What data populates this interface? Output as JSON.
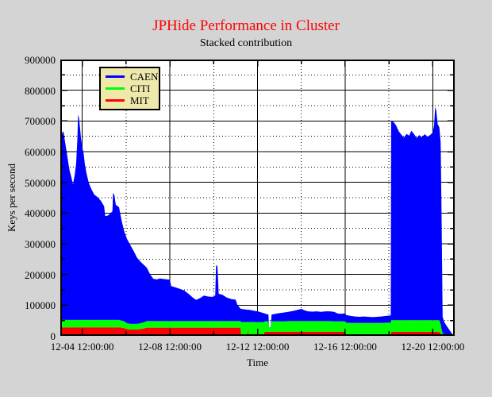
{
  "page": {
    "background": "#d4d4d4"
  },
  "chart_data": {
    "type": "area",
    "stacked": true,
    "title": "JPHide Performance in Cluster",
    "title_color": "#ff0000",
    "subtitle": "Stacked contribution",
    "xlabel": "Time",
    "ylabel": "Keys per second",
    "xlim": [
      0,
      18
    ],
    "ylim": [
      0,
      900000
    ],
    "x_unit": "days; 0 = left edge (12-03 12:00:00), ticks every 4 days",
    "grid": "major solid, minor dotted",
    "x_ticks": [
      {
        "pos": 1,
        "label": "12-04 12:00:00"
      },
      {
        "pos": 5,
        "label": "12-08 12:00:00"
      },
      {
        "pos": 9,
        "label": "12-12 12:00:00"
      },
      {
        "pos": 13,
        "label": "12-16 12:00:00"
      },
      {
        "pos": 17,
        "label": "12-20 12:00:00"
      }
    ],
    "x_minor_ticks": [
      3,
      7,
      11,
      15
    ],
    "y_ticks": [
      {
        "pos": 0,
        "label": "0"
      },
      {
        "pos": 100000,
        "label": "100000"
      },
      {
        "pos": 200000,
        "label": "200000"
      },
      {
        "pos": 300000,
        "label": "300000"
      },
      {
        "pos": 400000,
        "label": "400000"
      },
      {
        "pos": 500000,
        "label": "500000"
      },
      {
        "pos": 600000,
        "label": "600000"
      },
      {
        "pos": 700000,
        "label": "700000"
      },
      {
        "pos": 800000,
        "label": "800000"
      },
      {
        "pos": 900000,
        "label": "900000"
      }
    ],
    "y_minor_ticks": [
      50000,
      150000,
      250000,
      350000,
      450000,
      550000,
      650000,
      750000,
      850000
    ],
    "legend": {
      "position": "top-left",
      "background": "#eee8aa",
      "items": [
        {
          "label": "CAEN",
          "color": "#0000ff"
        },
        {
          "label": "CITI",
          "color": "#00ff00"
        },
        {
          "label": "MIT",
          "color": "#ff0000"
        }
      ]
    },
    "series_order_bottom_to_top": [
      "MIT",
      "CITI",
      "CAEN"
    ],
    "series": [
      {
        "name": "MIT",
        "color": "#ff0000"
      },
      {
        "name": "CITI",
        "color": "#00ff00"
      },
      {
        "name": "CAEN",
        "color": "#0000ff"
      }
    ],
    "samples_format": [
      "x_days",
      "MIT_keys_per_sec",
      "CITI_keys_per_sec",
      "CAEN_keys_per_sec"
    ],
    "samples": [
      [
        0.0,
        28000,
        24000,
        593000
      ],
      [
        0.08,
        28000,
        24000,
        608000
      ],
      [
        0.14,
        28000,
        24000,
        615000
      ],
      [
        0.22,
        28000,
        24000,
        578000
      ],
      [
        0.32,
        28000,
        24000,
        533000
      ],
      [
        0.42,
        28000,
        24000,
        488000
      ],
      [
        0.5,
        28000,
        24000,
        466000
      ],
      [
        0.58,
        28000,
        24000,
        442000
      ],
      [
        0.66,
        28000,
        24000,
        473000
      ],
      [
        0.72,
        28000,
        24000,
        508000
      ],
      [
        0.78,
        28000,
        24000,
        588000
      ],
      [
        0.81,
        28000,
        24000,
        669000
      ],
      [
        0.85,
        28000,
        24000,
        658000
      ],
      [
        0.9,
        28000,
        24000,
        624000
      ],
      [
        0.95,
        28000,
        24000,
        588000
      ],
      [
        1.0,
        28000,
        24000,
        563000
      ],
      [
        1.06,
        28000,
        24000,
        544000
      ],
      [
        1.12,
        28000,
        24000,
        508000
      ],
      [
        1.2,
        28000,
        24000,
        476000
      ],
      [
        1.3,
        28000,
        24000,
        446000
      ],
      [
        1.42,
        28000,
        24000,
        426000
      ],
      [
        1.55,
        28000,
        24000,
        408000
      ],
      [
        1.7,
        28000,
        24000,
        400000
      ],
      [
        1.85,
        28000,
        24000,
        388000
      ],
      [
        2.0,
        28000,
        24000,
        370000
      ],
      [
        2.05,
        28000,
        24000,
        338000
      ],
      [
        2.18,
        28000,
        24000,
        340000
      ],
      [
        2.3,
        28000,
        24000,
        348000
      ],
      [
        2.38,
        28000,
        24000,
        354000
      ],
      [
        2.41,
        28000,
        24000,
        414000
      ],
      [
        2.47,
        28000,
        24000,
        406000
      ],
      [
        2.53,
        28000,
        24000,
        375000
      ],
      [
        2.68,
        28000,
        24000,
        367000
      ],
      [
        2.8,
        27000,
        23000,
        325000
      ],
      [
        2.92,
        25000,
        22000,
        293000
      ],
      [
        3.05,
        22000,
        19000,
        274000
      ],
      [
        3.2,
        21000,
        18000,
        256000
      ],
      [
        3.35,
        21000,
        18000,
        237000
      ],
      [
        3.5,
        21000,
        18000,
        216000
      ],
      [
        3.65,
        22000,
        19000,
        201000
      ],
      [
        3.8,
        24000,
        20000,
        188000
      ],
      [
        3.95,
        27000,
        21000,
        174000
      ],
      [
        4.1,
        27000,
        21000,
        152000
      ],
      [
        4.25,
        27000,
        21000,
        138000
      ],
      [
        4.4,
        27000,
        21000,
        136000
      ],
      [
        4.55,
        27000,
        21000,
        139000
      ],
      [
        4.75,
        27000,
        21000,
        137000
      ],
      [
        5.0,
        27000,
        21000,
        135000
      ],
      [
        5.06,
        27000,
        21000,
        114000
      ],
      [
        5.25,
        27000,
        21000,
        110000
      ],
      [
        5.45,
        27000,
        21000,
        105000
      ],
      [
        5.65,
        27000,
        21000,
        100000
      ],
      [
        5.85,
        27000,
        21000,
        89000
      ],
      [
        6.05,
        27000,
        21000,
        77000
      ],
      [
        6.2,
        27000,
        21000,
        69000
      ],
      [
        6.4,
        27000,
        21000,
        76000
      ],
      [
        6.55,
        27000,
        21000,
        83000
      ],
      [
        6.75,
        27000,
        21000,
        80000
      ],
      [
        6.95,
        27000,
        21000,
        79000
      ],
      [
        7.07,
        27000,
        21000,
        83000
      ],
      [
        7.11,
        27000,
        21000,
        183000
      ],
      [
        7.17,
        27000,
        21000,
        178000
      ],
      [
        7.23,
        27000,
        21000,
        89000
      ],
      [
        7.4,
        27000,
        21000,
        86000
      ],
      [
        7.6,
        27000,
        21000,
        77000
      ],
      [
        7.8,
        27000,
        21000,
        72000
      ],
      [
        8.0,
        27000,
        21000,
        70000
      ],
      [
        8.08,
        27000,
        21000,
        53000
      ],
      [
        8.22,
        27000,
        21000,
        41000
      ],
      [
        8.26,
        0,
        45000,
        43000
      ],
      [
        8.45,
        0,
        45000,
        41000
      ],
      [
        8.53,
        0,
        45000,
        40000
      ],
      [
        8.56,
        28000,
        18000,
        39000
      ],
      [
        8.59,
        0,
        45000,
        40000
      ],
      [
        8.75,
        0,
        45000,
        38000
      ],
      [
        8.9,
        0,
        45000,
        36000
      ],
      [
        9.0,
        0,
        45000,
        35000
      ],
      [
        9.15,
        0,
        45000,
        32000
      ],
      [
        9.28,
        0,
        45000,
        29000
      ],
      [
        9.32,
        13000,
        34000,
        26000
      ],
      [
        9.45,
        13000,
        34000,
        23000
      ],
      [
        9.5,
        13000,
        34000,
        22000
      ],
      [
        9.53,
        13000,
        14000,
        0
      ],
      [
        9.6,
        13000,
        15000,
        1000
      ],
      [
        9.64,
        13000,
        34000,
        22000
      ],
      [
        9.8,
        13000,
        34000,
        25000
      ],
      [
        10.0,
        13000,
        34000,
        27000
      ],
      [
        10.2,
        13000,
        34000,
        29000
      ],
      [
        10.4,
        13000,
        35000,
        30000
      ],
      [
        10.6,
        13000,
        35000,
        33000
      ],
      [
        10.8,
        13000,
        35000,
        36000
      ],
      [
        11.0,
        13000,
        35000,
        40000
      ],
      [
        11.15,
        13000,
        35000,
        35000
      ],
      [
        11.3,
        13000,
        35000,
        32000
      ],
      [
        11.5,
        13000,
        35000,
        31000
      ],
      [
        11.7,
        13000,
        35000,
        32000
      ],
      [
        11.9,
        13000,
        35000,
        30000
      ],
      [
        12.1,
        13000,
        35000,
        32000
      ],
      [
        12.3,
        13000,
        35000,
        32000
      ],
      [
        12.5,
        13000,
        34000,
        31000
      ],
      [
        12.65,
        13000,
        34000,
        26000
      ],
      [
        12.8,
        13000,
        34000,
        25000
      ],
      [
        12.95,
        13000,
        34000,
        26000
      ],
      [
        13.0,
        13000,
        34000,
        25000
      ],
      [
        13.05,
        0,
        43000,
        25000
      ],
      [
        13.25,
        0,
        42000,
        23000
      ],
      [
        13.45,
        0,
        42000,
        21000
      ],
      [
        13.65,
        0,
        42000,
        20000
      ],
      [
        13.85,
        0,
        42000,
        21000
      ],
      [
        14.05,
        0,
        42000,
        20000
      ],
      [
        14.25,
        0,
        42000,
        19000
      ],
      [
        14.45,
        0,
        42000,
        20000
      ],
      [
        14.65,
        0,
        42000,
        21000
      ],
      [
        14.85,
        0,
        43000,
        22000
      ],
      [
        15.02,
        0,
        43000,
        23000
      ],
      [
        15.08,
        0,
        43000,
        24000
      ],
      [
        15.1,
        13000,
        38000,
        649000
      ],
      [
        15.22,
        13000,
        38000,
        645000
      ],
      [
        15.32,
        13000,
        38000,
        635000
      ],
      [
        15.45,
        13000,
        38000,
        615000
      ],
      [
        15.58,
        13000,
        38000,
        603000
      ],
      [
        15.68,
        13000,
        38000,
        595000
      ],
      [
        15.8,
        13000,
        38000,
        607000
      ],
      [
        15.92,
        13000,
        38000,
        601000
      ],
      [
        16.02,
        13000,
        38000,
        617000
      ],
      [
        16.14,
        13000,
        38000,
        607000
      ],
      [
        16.26,
        13000,
        38000,
        594000
      ],
      [
        16.38,
        13000,
        38000,
        603000
      ],
      [
        16.5,
        13000,
        38000,
        596000
      ],
      [
        16.63,
        13000,
        38000,
        606000
      ],
      [
        16.76,
        13000,
        38000,
        598000
      ],
      [
        16.89,
        13000,
        38000,
        604000
      ],
      [
        17.0,
        13000,
        38000,
        612000
      ],
      [
        17.06,
        13000,
        38000,
        633000
      ],
      [
        17.11,
        13000,
        38000,
        695000
      ],
      [
        17.16,
        13000,
        38000,
        682000
      ],
      [
        17.22,
        13000,
        38000,
        639000
      ],
      [
        17.3,
        13000,
        38000,
        628000
      ],
      [
        17.36,
        8000,
        30000,
        592000
      ],
      [
        17.4,
        3000,
        20000,
        382000
      ],
      [
        17.45,
        0,
        8000,
        54000
      ],
      [
        17.52,
        0,
        3000,
        43000
      ],
      [
        17.62,
        0,
        0,
        34000
      ],
      [
        17.75,
        0,
        0,
        20000
      ],
      [
        17.88,
        0,
        0,
        7000
      ],
      [
        17.95,
        0,
        0,
        1500
      ],
      [
        18.0,
        0,
        0,
        0
      ]
    ]
  }
}
